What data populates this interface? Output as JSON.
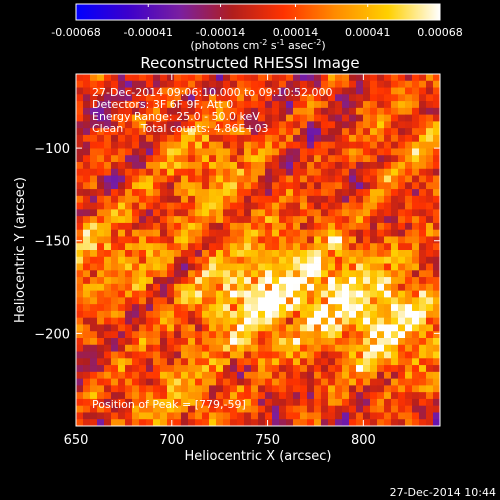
{
  "chart_data": {
    "type": "heatmap",
    "title": "Reconstructed RHESSI Image",
    "xlabel": "Heliocentric X (arcsec)",
    "ylabel": "Heliocentric Y (arcsec)",
    "xlim": [
      650,
      840
    ],
    "ylim": [
      -250,
      -60
    ],
    "x_ticks": [
      650,
      700,
      750,
      800
    ],
    "y_ticks": [
      -100,
      -150,
      -200
    ],
    "grid": false,
    "colorbar": {
      "min": -0.00068,
      "max": 0.00068,
      "tick_labels": [
        "-0.00068",
        "-0.00041",
        "-0.00014",
        "0.00014",
        "0.00041",
        "0.00068"
      ],
      "tick_values": [
        -0.00068,
        -0.00041,
        -0.00014,
        0.00014,
        0.00041,
        0.00068
      ],
      "unit_label": "(photons cm",
      "unit_exp1": "-2",
      "unit_mid": " s",
      "unit_exp2": "-1",
      "unit_mid2": " asec",
      "unit_exp3": "-2",
      "unit_end": ")",
      "colors": [
        "#0000ff",
        "#3c00cc",
        "#7a1fa0",
        "#b01e1e",
        "#ff3300",
        "#ff8c00",
        "#ffd000",
        "#ffffff"
      ]
    },
    "annotations": [
      "27-Dec-2014 09:06:10.000 to 09:10:52.000",
      "Detectors: 3F 6F 9F, Att 0",
      "Energy Range: 25.0 - 50.0 keV",
      "Clean     Total counts: 4.86E+03"
    ],
    "peak_label": "Position of Peak = [779,-59]",
    "bright_regions": [
      {
        "x": 740,
        "y": -182,
        "value": 0.00062
      },
      {
        "x": 815,
        "y": -195,
        "value": 0.0006
      },
      {
        "x": 780,
        "y": -170,
        "value": 0.00045
      },
      {
        "x": 665,
        "y": -160,
        "value": 0.0004
      },
      {
        "x": 720,
        "y": -110,
        "value": 0.00035
      },
      {
        "x": 830,
        "y": -100,
        "value": 0.0003
      },
      {
        "x": 700,
        "y": -240,
        "value": 0.0003
      }
    ]
  },
  "footer": {
    "timestamp": "27-Dec-2014 10:44"
  }
}
